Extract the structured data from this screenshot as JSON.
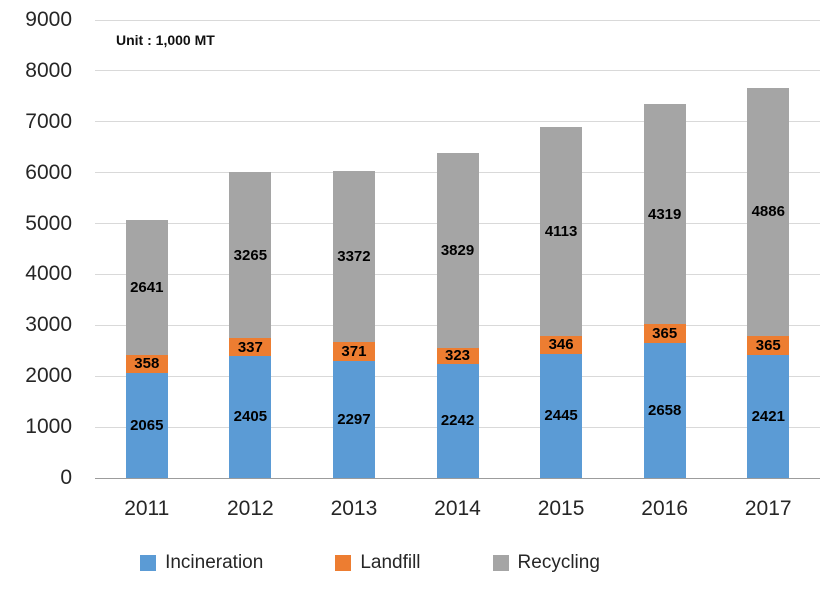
{
  "chart": {
    "unit_label": "Unit : 1,000 MT"
  },
  "chart_data": {
    "type": "bar",
    "stacked": true,
    "title": "",
    "xlabel": "",
    "ylabel": "",
    "unit_label": "Unit : 1,000 MT",
    "categories": [
      "2011",
      "2012",
      "2013",
      "2014",
      "2015",
      "2016",
      "2017"
    ],
    "series": [
      {
        "name": "Incineration",
        "color": "#5B9BD5",
        "values": [
          2065,
          2405,
          2297,
          2242,
          2445,
          2658,
          2421
        ]
      },
      {
        "name": "Landfill",
        "color": "#ED7D31",
        "values": [
          358,
          337,
          371,
          323,
          346,
          365,
          365
        ]
      },
      {
        "name": "Recycling",
        "color": "#A5A5A5",
        "values": [
          2641,
          3265,
          3372,
          3829,
          4113,
          4319,
          4886
        ]
      }
    ],
    "ylim": [
      0,
      9000
    ],
    "ytick_step": 1000,
    "grid": true,
    "legend_position": "bottom"
  }
}
